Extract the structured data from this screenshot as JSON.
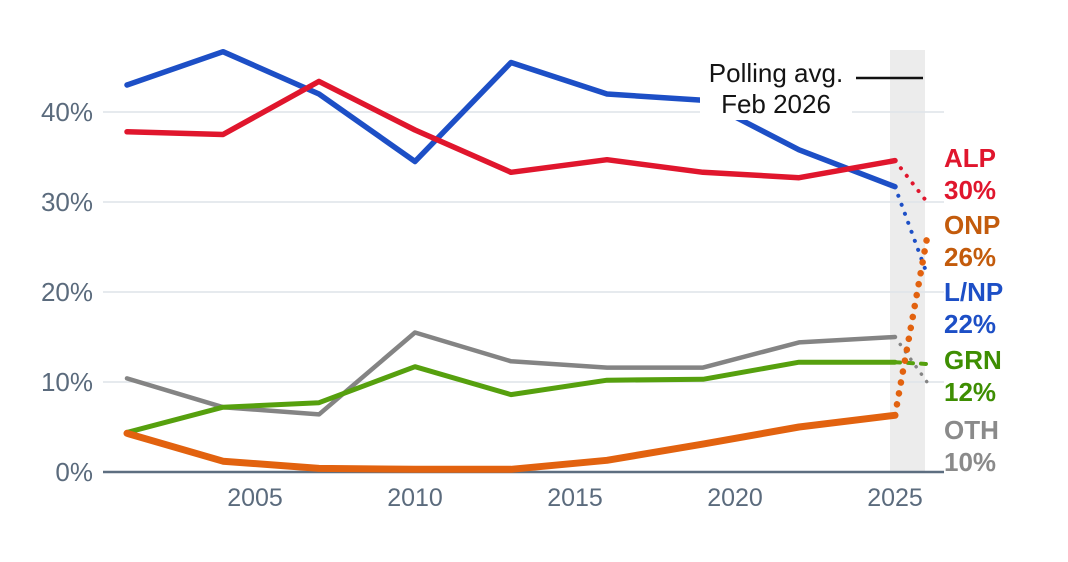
{
  "chart_data": {
    "type": "line",
    "x_years": [
      2001,
      2004,
      2007,
      2010,
      2013,
      2016,
      2019,
      2022,
      2025
    ],
    "projection_year": 2026,
    "x_tick_labels": [
      "2005",
      "2010",
      "2015",
      "2020",
      "2025"
    ],
    "y_tick_labels": [
      "0%",
      "10%",
      "20%",
      "30%",
      "40%"
    ],
    "y_tick_values": [
      0,
      10,
      20,
      30,
      40
    ],
    "y_axis_range": [
      0,
      47
    ],
    "grid": true,
    "legend_position": "right-of-plot",
    "series": [
      {
        "id": "alp",
        "name": "ALP",
        "color": "#e0162d",
        "label_color": "#e0162d",
        "values": [
          37.8,
          37.5,
          43.4,
          38.0,
          33.3,
          34.7,
          33.3,
          32.7,
          34.6
        ],
        "projection_value": 30,
        "display_value": "30%"
      },
      {
        "id": "onp",
        "name": "ONP",
        "color": "#e2620f",
        "label_color": "#c35b0c",
        "values": [
          4.3,
          1.2,
          0.4,
          0.3,
          0.3,
          1.3,
          3.1,
          5.0,
          6.3
        ],
        "projection_value": 26,
        "display_value": "26%"
      },
      {
        "id": "lnp",
        "name": "L/NP",
        "color": "#1d4fc6",
        "label_color": "#1d4fc6",
        "values": [
          43.0,
          46.7,
          42.0,
          34.5,
          45.5,
          42.0,
          41.3,
          35.8,
          31.7
        ],
        "projection_value": 22,
        "display_value": "22%"
      },
      {
        "id": "grn",
        "name": "GRN",
        "color": "#56a00e",
        "label_color": "#3e8e02",
        "values": [
          4.4,
          7.2,
          7.7,
          11.7,
          8.6,
          10.2,
          10.3,
          12.2,
          12.2
        ],
        "projection_value": 12,
        "display_value": "12%"
      },
      {
        "id": "oth",
        "name": "OTH",
        "color": "#848484",
        "label_color": "#8a8a8a",
        "values": [
          10.4,
          7.2,
          6.4,
          15.5,
          12.3,
          11.6,
          11.6,
          14.4,
          15.0
        ],
        "projection_value": 10,
        "display_value": "10%"
      }
    ],
    "annotation": {
      "line1": "Polling avg.",
      "line2": "Feb 2026"
    },
    "colors": {
      "grid": "#dee3e9",
      "axis": "#5d6e80",
      "tick_text": "#5b6b7d",
      "projection_band": "#ececec",
      "annotation_text": "#141414",
      "annotation_key_line": "#111111",
      "background": "#ffffff"
    }
  }
}
